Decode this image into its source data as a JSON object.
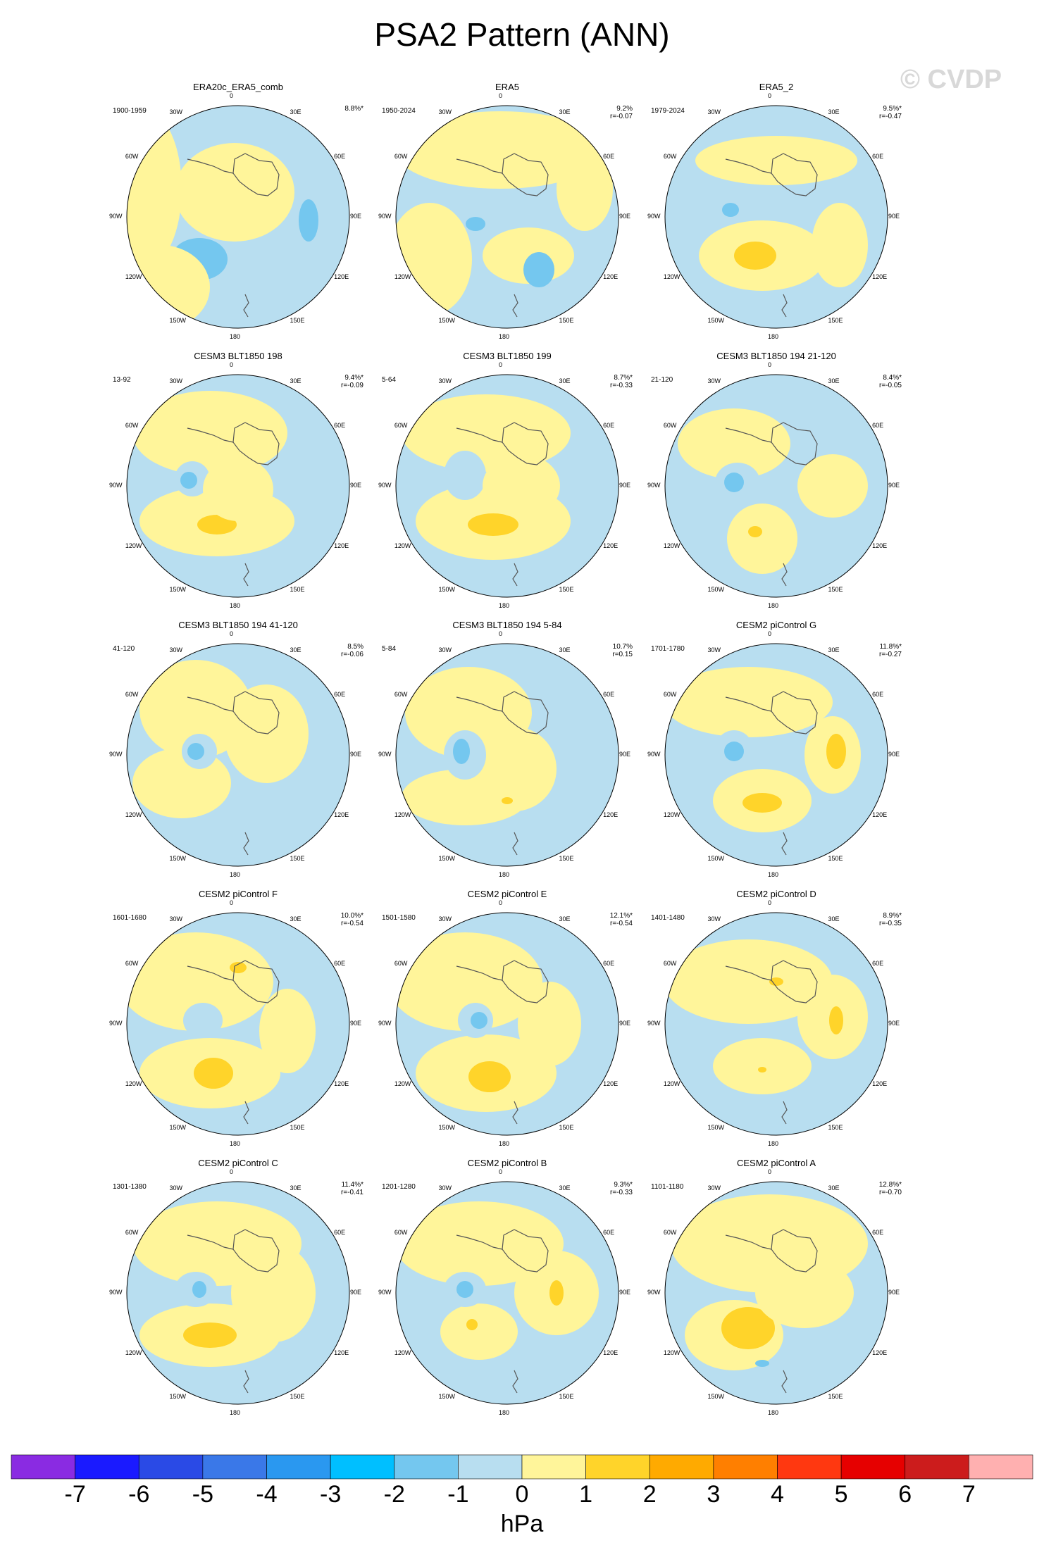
{
  "figure": {
    "title": "PSA2 Pattern (ANN)",
    "watermark": "© CVDP"
  },
  "map_labels": {
    "lon": [
      "0",
      "30E",
      "60E",
      "90E",
      "120E",
      "150E",
      "180",
      "150W",
      "120W",
      "90W",
      "60W",
      "30W"
    ]
  },
  "chart_data": {
    "type": "heatmap",
    "description_units": "hPa",
    "projection": "south polar stereographic",
    "panels": [
      {
        "name": "ERA20c_ERA5_comb",
        "period": "1900-1959",
        "pct": "8.8%*",
        "r": ""
      },
      {
        "name": "ERA5",
        "period": "1950-2024",
        "pct": "9.2%",
        "r": "r=-0.07"
      },
      {
        "name": "ERA5_2",
        "period": "1979-2024",
        "pct": "9.5%*",
        "r": "r=-0.47"
      },
      {
        "name": "CESM3 BLT1850 198",
        "period": "13-92",
        "pct": "9.4%*",
        "r": "r=-0.09"
      },
      {
        "name": "CESM3 BLT1850 199",
        "period": "5-64",
        "pct": "8.7%*",
        "r": "r=-0.33"
      },
      {
        "name": "CESM3 BLT1850 194 21-120",
        "period": "21-120",
        "pct": "8.4%*",
        "r": "r=-0.05"
      },
      {
        "name": "CESM3 BLT1850 194 41-120",
        "period": "41-120",
        "pct": "8.5%",
        "r": "r=-0.06"
      },
      {
        "name": "CESM3 BLT1850 194 5-84",
        "period": "5-84",
        "pct": "10.7%",
        "r": "r=0.15"
      },
      {
        "name": "CESM2 piControl G",
        "period": "1701-1780",
        "pct": "11.8%*",
        "r": "r=-0.27"
      },
      {
        "name": "CESM2 piControl F",
        "period": "1601-1680",
        "pct": "10.0%*",
        "r": "r=-0.54"
      },
      {
        "name": "CESM2 piControl E",
        "period": "1501-1580",
        "pct": "12.1%*",
        "r": "r=-0.54"
      },
      {
        "name": "CESM2 piControl D",
        "period": "1401-1480",
        "pct": "8.9%*",
        "r": "r=-0.35"
      },
      {
        "name": "CESM2 piControl C",
        "period": "1301-1380",
        "pct": "11.4%*",
        "r": "r=-0.41"
      },
      {
        "name": "CESM2 piControl B",
        "period": "1201-1280",
        "pct": "9.3%*",
        "r": "r=-0.33"
      },
      {
        "name": "CESM2 piControl A",
        "period": "1101-1180",
        "pct": "12.8%*",
        "r": "r=-0.70"
      }
    ],
    "colorbar": {
      "units": "hPa",
      "tick_labels": [
        "-7",
        "-6",
        "-5",
        "-4",
        "-3",
        "-2",
        "-1",
        "0",
        "1",
        "2",
        "3",
        "4",
        "5",
        "6",
        "7"
      ],
      "colors": [
        "#8a2be2",
        "#1a1aff",
        "#2a4ae6",
        "#3a78e8",
        "#2a98f0",
        "#00bfff",
        "#74c7ef",
        "#b8def0",
        "#fff59a",
        "#ffd42a",
        "#ffaa00",
        "#ff7f00",
        "#ff3810",
        "#e60000",
        "#cc1c1c",
        "#ffb0b0"
      ]
    },
    "palette": {
      "neg2": "#74c7ef",
      "neg1": "#b8def0",
      "pos1": "#fff59a",
      "pos2": "#ffd42a",
      "coast": "#555555"
    }
  }
}
